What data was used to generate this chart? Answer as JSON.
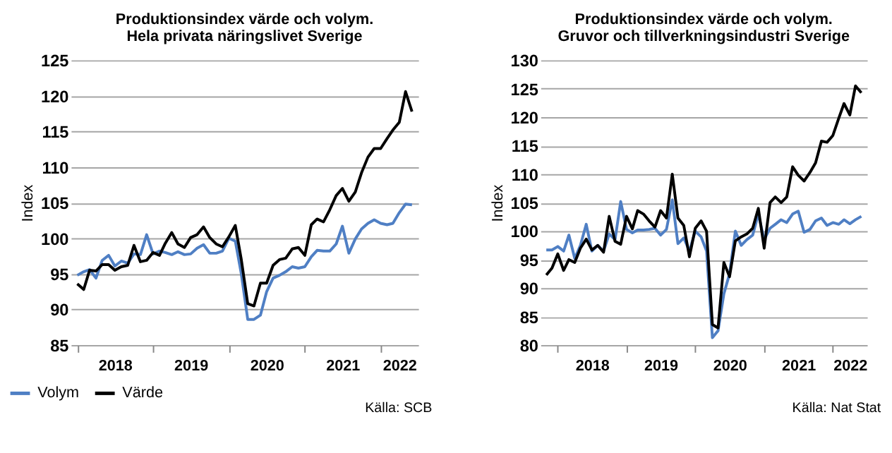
{
  "chart_data": [
    {
      "type": "line",
      "title": "Produktionsindex värde och volym.",
      "subtitle": "Hela privata näringslivet Sverige",
      "ylabel": "Index",
      "ylim": [
        85,
        125
      ],
      "yticks": [
        85,
        90,
        95,
        100,
        105,
        110,
        115,
        120,
        125
      ],
      "xlim": [
        "2017-12",
        "2022-07"
      ],
      "xticks": [
        {
          "value": "2018-01",
          "label": null
        },
        {
          "value": "2018-07",
          "label": "2018"
        },
        {
          "value": "2019-01",
          "label": null
        },
        {
          "value": "2019-07",
          "label": "2019"
        },
        {
          "value": "2020-01",
          "label": null
        },
        {
          "value": "2020-07",
          "label": "2020"
        },
        {
          "value": "2021-01",
          "label": null
        },
        {
          "value": "2021-07",
          "label": "2021"
        },
        {
          "value": "2022-01",
          "label": null
        },
        {
          "value": "2022-04",
          "label": "2022"
        }
      ],
      "x": [
        "2018-01",
        "2018-02",
        "2018-03",
        "2018-04",
        "2018-05",
        "2018-06",
        "2018-07",
        "2018-08",
        "2018-09",
        "2018-10",
        "2018-11",
        "2018-12",
        "2019-01",
        "2019-02",
        "2019-03",
        "2019-04",
        "2019-05",
        "2019-06",
        "2019-07",
        "2019-08",
        "2019-09",
        "2019-10",
        "2019-11",
        "2019-12",
        "2020-01",
        "2020-02",
        "2020-03",
        "2020-04",
        "2020-05",
        "2020-06",
        "2020-07",
        "2020-08",
        "2020-09",
        "2020-10",
        "2020-11",
        "2020-12",
        "2021-01",
        "2021-02",
        "2021-03",
        "2021-04",
        "2021-05",
        "2021-06",
        "2021-07",
        "2021-08",
        "2021-09",
        "2021-10",
        "2021-11",
        "2021-12",
        "2022-01",
        "2022-02",
        "2022-03",
        "2022-04",
        "2022-05",
        "2022-06"
      ],
      "series": [
        {
          "name": "Volym",
          "color": "#4f7fc4",
          "values": [
            94.8,
            95.3,
            95.6,
            94.4,
            96.9,
            97.6,
            96.1,
            96.8,
            96.5,
            97.8,
            97.7,
            100.5,
            97.8,
            98.2,
            98.0,
            97.7,
            98.1,
            97.7,
            97.8,
            98.6,
            99.1,
            97.9,
            97.9,
            98.2,
            100.0,
            99.6,
            95.0,
            88.6,
            88.6,
            89.2,
            92.5,
            94.4,
            94.8,
            95.3,
            96.0,
            95.8,
            96.0,
            97.4,
            98.3,
            98.2,
            98.2,
            99.2,
            101.7,
            97.9,
            99.9,
            101.3,
            102.1,
            102.6,
            102.1,
            101.9,
            102.1,
            103.6,
            104.8,
            104.7
          ]
        },
        {
          "name": "Värde",
          "color": "#000000",
          "values": [
            93.6,
            92.8,
            95.5,
            95.4,
            96.3,
            96.3,
            95.5,
            96.0,
            96.2,
            99.0,
            96.7,
            96.9,
            98.0,
            97.6,
            99.3,
            100.8,
            99.2,
            98.7,
            100.1,
            100.5,
            101.6,
            100.1,
            99.2,
            98.8,
            100.2,
            101.8,
            97.0,
            90.8,
            90.5,
            93.7,
            93.7,
            96.2,
            97.0,
            97.2,
            98.5,
            98.7,
            97.6,
            101.9,
            102.7,
            102.3,
            104.0,
            106.0,
            107.0,
            105.2,
            106.5,
            109.2,
            111.4,
            112.6,
            112.6,
            114.0,
            115.2,
            116.3,
            120.6,
            117.8
          ]
        }
      ],
      "grid": "y",
      "legend": "bottom left",
      "annotations": [
        "Källa: SCB"
      ]
    },
    {
      "type": "line",
      "title": "Produktionsindex värde och volym.",
      "subtitle": "Gruvor och tillverkningsindustri Sverige",
      "ylabel": "Index",
      "ylim": [
        80,
        130
      ],
      "yticks": [
        80,
        85,
        90,
        95,
        100,
        105,
        110,
        115,
        120,
        125,
        130
      ],
      "xlim": [
        "2017-10",
        "2022-07"
      ],
      "xticks": [
        {
          "value": "2018-01",
          "label": null
        },
        {
          "value": "2018-07",
          "label": "2018"
        },
        {
          "value": "2019-01",
          "label": null
        },
        {
          "value": "2019-07",
          "label": "2019"
        },
        {
          "value": "2020-01",
          "label": null
        },
        {
          "value": "2020-07",
          "label": "2020"
        },
        {
          "value": "2021-01",
          "label": null
        },
        {
          "value": "2021-07",
          "label": "2021"
        },
        {
          "value": "2022-01",
          "label": null
        },
        {
          "value": "2022-04",
          "label": "2022"
        }
      ],
      "x": [
        "2017-11",
        "2017-12",
        "2018-01",
        "2018-02",
        "2018-03",
        "2018-04",
        "2018-05",
        "2018-06",
        "2018-07",
        "2018-08",
        "2018-09",
        "2018-10",
        "2018-11",
        "2018-12",
        "2019-01",
        "2019-02",
        "2019-03",
        "2019-04",
        "2019-05",
        "2019-06",
        "2019-07",
        "2019-08",
        "2019-09",
        "2019-10",
        "2019-11",
        "2019-12",
        "2020-01",
        "2020-02",
        "2020-03",
        "2020-04",
        "2020-05",
        "2020-06",
        "2020-07",
        "2020-08",
        "2020-09",
        "2020-10",
        "2020-11",
        "2020-12",
        "2021-01",
        "2021-02",
        "2021-03",
        "2021-04",
        "2021-05",
        "2021-06",
        "2021-07",
        "2021-08",
        "2021-09",
        "2021-10",
        "2021-11",
        "2021-12",
        "2022-01",
        "2022-02",
        "2022-03",
        "2022-04",
        "2022-05",
        "2022-06"
      ],
      "series": [
        {
          "name": "Volym",
          "color": "#4f7fc4",
          "values": [
            96.7,
            96.7,
            97.3,
            96.5,
            99.3,
            95.2,
            97.5,
            101.2,
            96.5,
            97.5,
            96.5,
            99.5,
            98.5,
            105.2,
            100.3,
            99.7,
            100.2,
            100.2,
            100.3,
            100.5,
            99.3,
            100.3,
            105.5,
            97.8,
            98.8,
            96.5,
            100.0,
            99.0,
            96.5,
            81.3,
            82.5,
            89.0,
            92.5,
            100.0,
            97.5,
            98.5,
            99.3,
            103.0,
            98.5,
            100.5,
            101.2,
            102.0,
            101.5,
            103.0,
            103.5,
            99.8,
            100.3,
            101.8,
            102.3,
            101.0,
            101.5,
            101.2,
            102.0,
            101.3,
            102.0,
            102.6
          ]
        },
        {
          "name": "Värde",
          "color": "#000000",
          "values": [
            92.3,
            93.5,
            96.0,
            93.1,
            95.0,
            94.5,
            97.0,
            98.6,
            96.7,
            97.5,
            96.3,
            102.6,
            98.2,
            97.7,
            102.6,
            100.4,
            103.6,
            103.0,
            101.8,
            100.7,
            103.6,
            102.3,
            110.0,
            102.3,
            101.0,
            95.5,
            100.5,
            101.8,
            100.0,
            83.6,
            83.0,
            94.5,
            92.0,
            98.3,
            99.0,
            99.5,
            100.5,
            104.0,
            97.0,
            105.0,
            106.0,
            105.0,
            106.0,
            111.3,
            109.8,
            108.8,
            110.3,
            112.0,
            115.8,
            115.6,
            116.8,
            119.8,
            122.4,
            120.4,
            125.5,
            124.3
          ]
        }
      ],
      "grid": "y",
      "legend": "bottom left",
      "annotations": [
        "Källa: Nat Stat"
      ]
    }
  ]
}
